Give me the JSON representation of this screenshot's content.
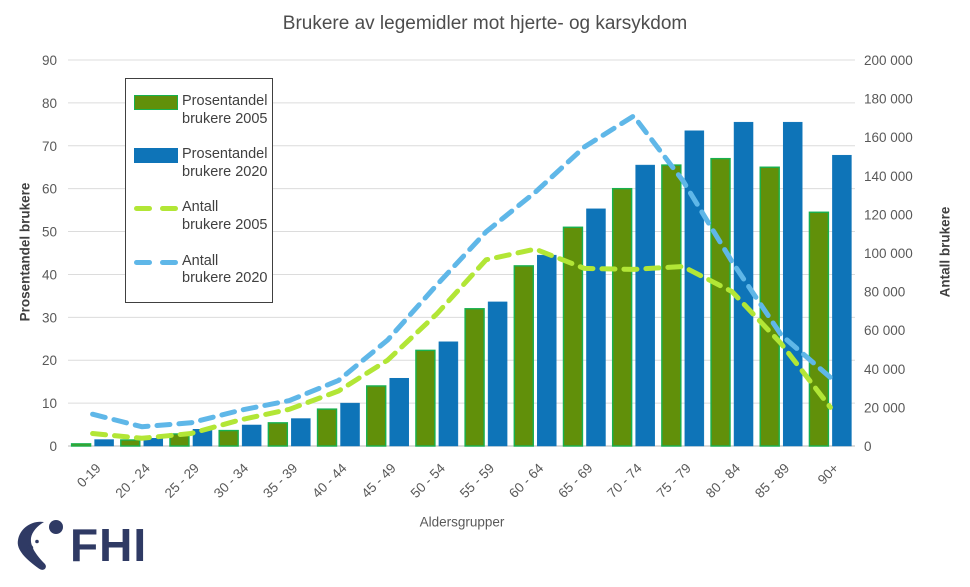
{
  "title": "Brukere av legemidler mot hjerte- og karsykdom",
  "legend": {
    "items": [
      {
        "label": "Prosentandel brukere 2005",
        "swatch": "bar",
        "color": "#61900A",
        "border": "#17B14F"
      },
      {
        "label": "Prosentandel brukere 2020",
        "swatch": "bar",
        "color": "#0E74B8",
        "border": "#0E74B8"
      },
      {
        "label": "Antall brukere 2005",
        "swatch": "dashed-line",
        "color": "#B2E636"
      },
      {
        "label": "Antall brukere 2020",
        "swatch": "dashed-line",
        "color": "#5FB7E8"
      }
    ]
  },
  "footer": {
    "logo_text": "FHI"
  },
  "chart_data": {
    "type": "combo-bar-line-dual-axis",
    "categories": [
      "0-19",
      "20 - 24",
      "25 - 29",
      "30 - 34",
      "35 - 39",
      "40 - 44",
      "45 - 49",
      "50 - 54",
      "55 - 59",
      "60 - 64",
      "65 - 69",
      "70 - 74",
      "75 - 79",
      "80 - 84",
      "85 - 89",
      "90+"
    ],
    "series": [
      {
        "name": "Prosentandel brukere 2005",
        "type": "bar",
        "axis": "left",
        "color": "#61900A",
        "border": "#17B14F",
        "values": [
          0.5,
          1.4,
          2.8,
          3.6,
          5.4,
          8.6,
          14.0,
          22.3,
          32.0,
          42.0,
          51.0,
          60.0,
          65.5,
          67.0,
          65.0,
          54.5
        ]
      },
      {
        "name": "Prosentandel brukere 2020",
        "type": "bar",
        "axis": "left",
        "color": "#0E74B8",
        "border": "#0E74B8",
        "values": [
          1.5,
          1.8,
          3.9,
          4.9,
          6.4,
          10.0,
          15.8,
          24.3,
          33.6,
          44.5,
          55.3,
          65.5,
          73.5,
          75.5,
          75.5,
          67.8
        ]
      },
      {
        "name": "Antall brukere 2005",
        "type": "line",
        "style": "dashed",
        "axis": "right",
        "color": "#B2E636",
        "values": [
          6500,
          4000,
          6500,
          13500,
          19000,
          28500,
          44500,
          68500,
          96500,
          102000,
          92000,
          91500,
          93000,
          80000,
          53000,
          20000
        ]
      },
      {
        "name": "Antall brukere 2020",
        "type": "line",
        "style": "dashed",
        "axis": "right",
        "color": "#5FB7E8",
        "values": [
          16500,
          10000,
          12000,
          18500,
          23500,
          34000,
          55000,
          83500,
          111000,
          131500,
          155000,
          171000,
          137500,
          95500,
          57500,
          35500
        ]
      }
    ],
    "xlabel": "Aldersgrupper",
    "ylabel_left": "Prosentandel brukere",
    "ylabel_right": "Antall brukere",
    "ylim_left": [
      0,
      90
    ],
    "ylim_right": [
      0,
      200000
    ],
    "yticks_left": [
      0,
      10,
      20,
      30,
      40,
      50,
      60,
      70,
      80,
      90
    ],
    "yticks_right": [
      0,
      20000,
      40000,
      60000,
      80000,
      100000,
      120000,
      140000,
      160000,
      180000,
      200000
    ],
    "grid": true,
    "legend_position": "inside-top-left"
  }
}
